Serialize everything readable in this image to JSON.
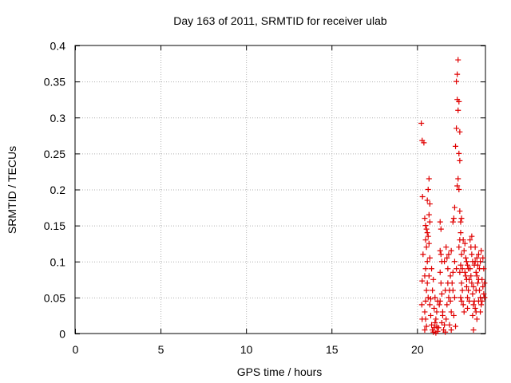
{
  "chart_data": {
    "type": "scatter",
    "title": "Day 163 of 2011, SRMTID for receiver ulab",
    "xlabel": "GPS time / hours",
    "ylabel": "SRMTID / TECUs",
    "xlim": [
      0,
      24
    ],
    "ylim": [
      0,
      0.4
    ],
    "xticks": [
      0,
      5,
      10,
      15,
      20
    ],
    "xtick_labels": [
      "0",
      "5",
      "10",
      "15",
      "20"
    ],
    "yticks": [
      0,
      0.05,
      0.1,
      0.15,
      0.2,
      0.25,
      0.3,
      0.35,
      0.4
    ],
    "ytick_labels": [
      "0",
      "0.05",
      "0.1",
      "0.15",
      "0.2",
      "0.25",
      "0.3",
      "0.35",
      "0.4"
    ],
    "grid": true,
    "marker": "+",
    "series": [
      {
        "name": "SRMTID",
        "color": "#e00000",
        "points": [
          [
            20.25,
            0.292
          ],
          [
            20.3,
            0.268
          ],
          [
            20.32,
            0.19
          ],
          [
            20.35,
            0.11
          ],
          [
            20.3,
            0.073
          ],
          [
            20.28,
            0.04
          ],
          [
            20.3,
            0.02
          ],
          [
            20.4,
            0.265
          ],
          [
            20.45,
            0.16
          ],
          [
            20.5,
            0.15
          ],
          [
            20.55,
            0.145
          ],
          [
            20.6,
            0.14
          ],
          [
            20.5,
            0.13
          ],
          [
            20.55,
            0.12
          ],
          [
            20.6,
            0.1
          ],
          [
            20.5,
            0.09
          ],
          [
            20.45,
            0.08
          ],
          [
            20.6,
            0.07
          ],
          [
            20.55,
            0.06
          ],
          [
            20.5,
            0.045
          ],
          [
            20.45,
            0.03
          ],
          [
            20.5,
            0.02
          ],
          [
            20.55,
            0.01
          ],
          [
            20.45,
            0.005
          ],
          [
            20.7,
            0.215
          ],
          [
            20.65,
            0.2
          ],
          [
            20.7,
            0.165
          ],
          [
            20.75,
            0.155
          ],
          [
            20.65,
            0.135
          ],
          [
            20.7,
            0.125
          ],
          [
            20.75,
            0.105
          ],
          [
            20.7,
            0.08
          ],
          [
            20.65,
            0.05
          ],
          [
            20.75,
            0.04
          ],
          [
            20.8,
            0.025
          ],
          [
            20.85,
            0.012
          ],
          [
            20.9,
            0.005
          ],
          [
            20.95,
            0.002
          ],
          [
            21.0,
            0.008
          ],
          [
            20.8,
            0.048
          ],
          [
            20.9,
            0.06
          ],
          [
            21.0,
            0.035
          ],
          [
            21.05,
            0.015
          ],
          [
            21.1,
            0.02
          ],
          [
            21.15,
            0.01
          ],
          [
            21.2,
            0.003
          ],
          [
            21.1,
            0.001
          ],
          [
            21.25,
            0.008
          ],
          [
            21.3,
            0.04
          ],
          [
            21.35,
            0.155
          ],
          [
            21.4,
            0.145
          ],
          [
            21.35,
            0.115
          ],
          [
            21.4,
            0.11
          ],
          [
            21.45,
            0.1
          ],
          [
            21.35,
            0.085
          ],
          [
            21.4,
            0.07
          ],
          [
            21.45,
            0.055
          ],
          [
            21.35,
            0.045
          ],
          [
            21.5,
            0.03
          ],
          [
            21.45,
            0.015
          ],
          [
            21.55,
            0.005
          ],
          [
            21.6,
            0.012
          ],
          [
            21.65,
            0.002
          ],
          [
            21.5,
            0.025
          ],
          [
            21.7,
            0.02
          ],
          [
            21.75,
            0.04
          ],
          [
            21.8,
            0.09
          ],
          [
            21.85,
            0.11
          ],
          [
            21.75,
            0.105
          ],
          [
            21.8,
            0.07
          ],
          [
            21.9,
            0.06
          ],
          [
            21.95,
            0.045
          ],
          [
            22.0,
            0.03
          ],
          [
            21.9,
            0.012
          ],
          [
            22.0,
            0.005
          ],
          [
            22.1,
            0.155
          ],
          [
            22.15,
            0.16
          ],
          [
            22.2,
            0.175
          ],
          [
            22.25,
            0.26
          ],
          [
            22.3,
            0.285
          ],
          [
            22.35,
            0.325
          ],
          [
            22.3,
            0.35
          ],
          [
            22.4,
            0.38
          ],
          [
            22.35,
            0.36
          ],
          [
            22.45,
            0.322
          ],
          [
            22.4,
            0.31
          ],
          [
            22.5,
            0.28
          ],
          [
            22.45,
            0.25
          ],
          [
            22.5,
            0.24
          ],
          [
            22.4,
            0.215
          ],
          [
            22.35,
            0.205
          ],
          [
            22.45,
            0.2
          ],
          [
            22.5,
            0.17
          ],
          [
            22.55,
            0.14
          ],
          [
            22.5,
            0.13
          ],
          [
            22.45,
            0.12
          ],
          [
            22.6,
            0.11
          ],
          [
            22.55,
            0.095
          ],
          [
            22.5,
            0.085
          ],
          [
            22.6,
            0.07
          ],
          [
            22.65,
            0.06
          ],
          [
            22.55,
            0.05
          ],
          [
            22.6,
            0.045
          ],
          [
            22.7,
            0.04
          ],
          [
            22.75,
            0.03
          ],
          [
            22.3,
            0.09
          ],
          [
            22.2,
            0.1
          ],
          [
            22.1,
            0.085
          ],
          [
            22.05,
            0.07
          ],
          [
            22.2,
            0.05
          ],
          [
            22.15,
            0.025
          ],
          [
            22.25,
            0.01
          ],
          [
            22.8,
            0.125
          ],
          [
            22.85,
            0.105
          ],
          [
            22.9,
            0.1
          ],
          [
            22.95,
            0.095
          ],
          [
            23.0,
            0.09
          ],
          [
            22.85,
            0.08
          ],
          [
            22.9,
            0.065
          ],
          [
            23.0,
            0.06
          ],
          [
            22.95,
            0.05
          ],
          [
            23.05,
            0.045
          ],
          [
            23.1,
            0.13
          ],
          [
            23.15,
            0.12
          ],
          [
            23.2,
            0.11
          ],
          [
            23.25,
            0.1
          ],
          [
            23.1,
            0.09
          ],
          [
            23.15,
            0.08
          ],
          [
            23.2,
            0.07
          ],
          [
            23.3,
            0.065
          ],
          [
            23.25,
            0.055
          ],
          [
            23.35,
            0.045
          ],
          [
            23.3,
            0.04
          ],
          [
            23.4,
            0.035
          ],
          [
            23.45,
            0.03
          ],
          [
            23.4,
            0.1
          ],
          [
            23.5,
            0.105
          ],
          [
            23.55,
            0.095
          ],
          [
            23.45,
            0.085
          ],
          [
            23.5,
            0.08
          ],
          [
            23.6,
            0.075
          ],
          [
            23.55,
            0.07
          ],
          [
            23.65,
            0.06
          ],
          [
            23.7,
            0.05
          ],
          [
            23.6,
            0.045
          ],
          [
            23.75,
            0.04
          ],
          [
            23.7,
            0.03
          ],
          [
            23.8,
            0.075
          ],
          [
            23.85,
            0.065
          ],
          [
            23.9,
            0.055
          ],
          [
            23.8,
            0.045
          ],
          [
            23.5,
            0.02
          ],
          [
            23.3,
            0.005
          ],
          [
            23.6,
            0.11
          ],
          [
            23.7,
            0.1
          ],
          [
            23.65,
            0.09
          ],
          [
            23.75,
            0.115
          ],
          [
            23.85,
            0.105
          ],
          [
            23.2,
            0.135
          ],
          [
            23.4,
            0.12
          ],
          [
            23.05,
            0.075
          ],
          [
            22.95,
            0.035
          ],
          [
            23.25,
            0.025
          ],
          [
            22.7,
            0.13
          ],
          [
            22.75,
            0.115
          ],
          [
            22.65,
            0.09
          ],
          [
            22.8,
            0.085
          ],
          [
            22.9,
            0.075
          ],
          [
            21.95,
            0.08
          ],
          [
            21.85,
            0.05
          ],
          [
            21.65,
            0.06
          ],
          [
            21.6,
            0.1
          ],
          [
            21.7,
            0.12
          ],
          [
            22.0,
            0.115
          ],
          [
            22.1,
            0.06
          ],
          [
            20.85,
            0.09
          ],
          [
            20.95,
            0.075
          ],
          [
            21.05,
            0.05
          ],
          [
            21.2,
            0.045
          ],
          [
            21.15,
            0.03
          ],
          [
            20.75,
            0.18
          ],
          [
            20.6,
            0.185
          ],
          [
            23.95,
            0.05
          ],
          [
            23.9,
            0.09
          ],
          [
            23.95,
            0.07
          ],
          [
            22.6,
            0.16
          ],
          [
            22.55,
            0.155
          ],
          [
            23.35,
            0.095
          ],
          [
            23.45,
            0.06
          ]
        ]
      }
    ]
  }
}
